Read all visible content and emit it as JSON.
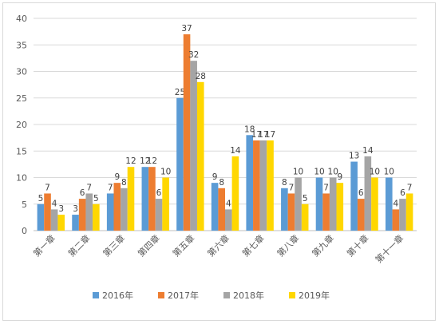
{
  "chart_data": {
    "type": "bar",
    "categories": [
      "第一章",
      "第二章",
      "第三章",
      "第四章",
      "第五章",
      "第六章",
      "第七章",
      "第八章",
      "第九章",
      "第十章",
      "第十一章"
    ],
    "series": [
      {
        "name": "2016年",
        "color": "#5b9bd5",
        "values": [
          5,
          3,
          7,
          12,
          25,
          9,
          18,
          8,
          10,
          13,
          10
        ]
      },
      {
        "name": "2017年",
        "color": "#ed7d31",
        "values": [
          7,
          6,
          9,
          12,
          37,
          8,
          17,
          7,
          7,
          6,
          4
        ]
      },
      {
        "name": "2018年",
        "color": "#a5a5a5",
        "values": [
          4,
          7,
          8,
          6,
          32,
          4,
          17,
          10,
          10,
          14,
          6
        ]
      },
      {
        "name": "2019年",
        "color": "#ffd700",
        "values": [
          3,
          5,
          12,
          10,
          28,
          14,
          17,
          5,
          9,
          10,
          7
        ]
      }
    ],
    "ylim": [
      0,
      40
    ],
    "yticks": [
      0,
      5,
      10,
      15,
      20,
      25,
      30,
      35,
      40
    ],
    "grid": true,
    "legend_position": "bottom"
  }
}
